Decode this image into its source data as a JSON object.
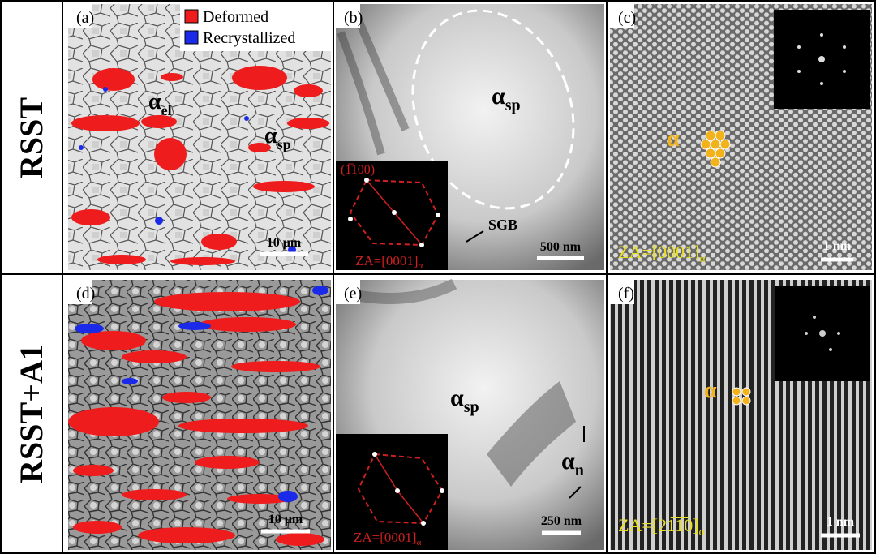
{
  "row_labels": [
    "RSST",
    "RSST+A1"
  ],
  "panels": [
    {
      "label": "(a)",
      "legend": [
        "Deformed",
        "Recrystallized"
      ],
      "annotations": [
        {
          "main": "α",
          "sub": "el"
        },
        {
          "main": "α",
          "sub": "sp"
        }
      ],
      "scale_bar": "10 μm"
    },
    {
      "label": "(b)",
      "annotations": [
        {
          "main": "α",
          "sub": "sp"
        },
        {
          "main": "SGB"
        }
      ],
      "diffraction_index": "(1̅100)",
      "zone_axis": {
        "main": "ZA=[0001]",
        "sub": "α"
      },
      "scale_bar": "500 nm"
    },
    {
      "label": "(c)",
      "annotations": [
        {
          "main": "α"
        }
      ],
      "zone_axis": {
        "main": "ZA=[0001]",
        "sub": "α"
      },
      "scale_bar": "1 nm"
    },
    {
      "label": "(d)",
      "scale_bar": "10 μm"
    },
    {
      "label": "(e)",
      "annotations": [
        {
          "main": "α",
          "sub": "sp"
        },
        {
          "main": "α",
          "sub": "n"
        }
      ],
      "zone_axis": {
        "main": "ZA=[0001]",
        "sub": "α"
      },
      "scale_bar": "250 nm"
    },
    {
      "label": "(f)",
      "annotations": [
        {
          "main": "α"
        }
      ],
      "zone_axis": {
        "main": "ZA=[21̅1̅0]",
        "sub": "α"
      },
      "scale_bar": "1 nm"
    }
  ]
}
